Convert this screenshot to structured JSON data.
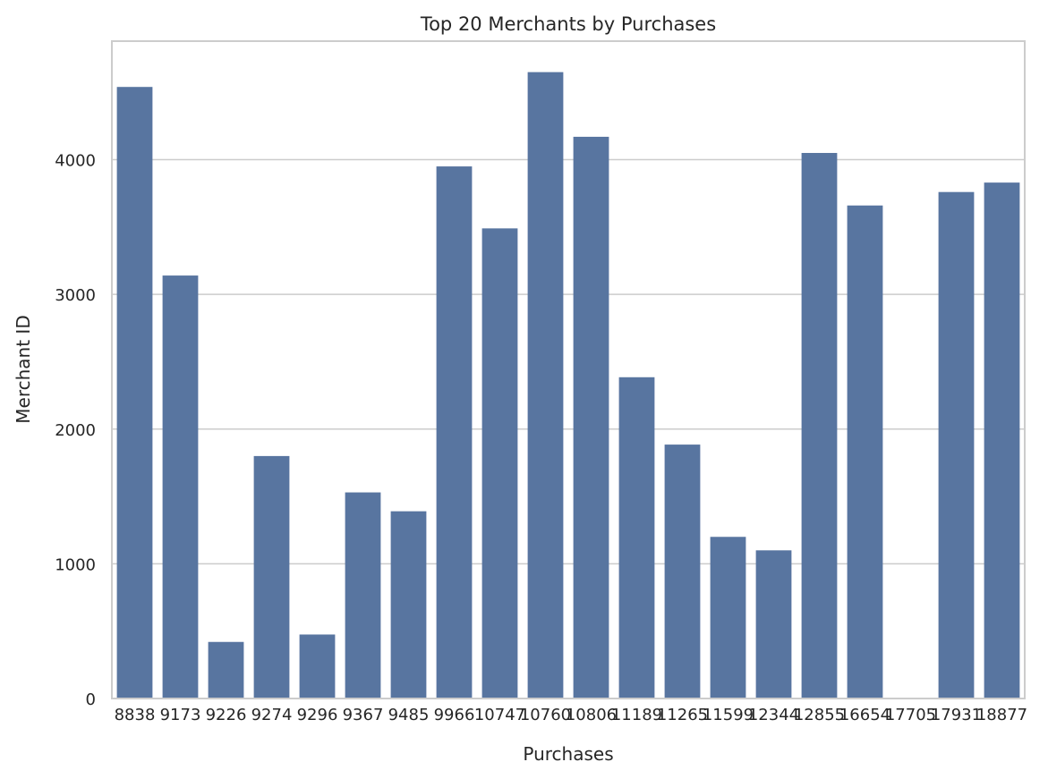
{
  "chart_data": {
    "type": "bar",
    "title": "Top 20 Merchants by Purchases",
    "xlabel": "Purchases",
    "ylabel": "Merchant ID",
    "categories": [
      "8838",
      "9173",
      "9226",
      "9274",
      "9296",
      "9367",
      "9485",
      "9966",
      "10747",
      "10760",
      "10806",
      "11189",
      "11265",
      "11599",
      "12344",
      "12855",
      "16654",
      "17705",
      "17931",
      "18877"
    ],
    "values": [
      4540,
      3140,
      420,
      1800,
      475,
      1530,
      1390,
      3950,
      3490,
      4650,
      4170,
      2385,
      1885,
      1200,
      1100,
      4050,
      3660,
      0,
      3760,
      3830
    ],
    "ylim": [
      0,
      4880
    ],
    "yticks": [
      0,
      1000,
      2000,
      3000,
      4000
    ],
    "grid": "y",
    "bar_color": "#5875a0",
    "grid_color": "#cccccc",
    "frame_color": "#cccccc"
  }
}
